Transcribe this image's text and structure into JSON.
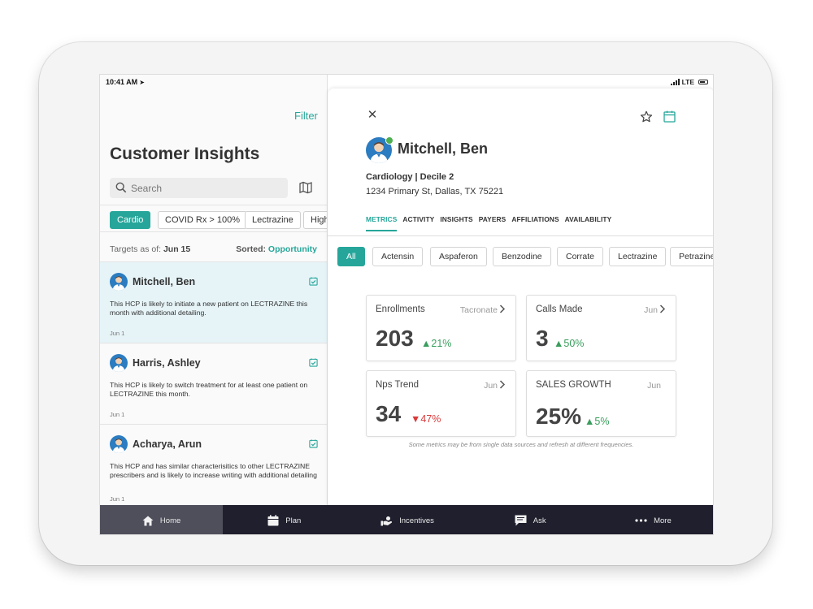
{
  "status": {
    "time": "10:41 AM",
    "network": "LTE"
  },
  "left": {
    "filter_label": "Filter",
    "title": "Customer Insights",
    "search_placeholder": "Search",
    "chips": [
      {
        "label": "Cardio",
        "active": true
      },
      {
        "label": "COVID Rx > 100%",
        "active": false
      },
      {
        "label": "Lectrazine",
        "active": false
      },
      {
        "label": "High",
        "active": false
      }
    ],
    "targets_prefix": "Targets as of:",
    "targets_date": "Jun 15",
    "sorted_prefix": "Sorted:",
    "sorted_value": "Opportunity",
    "hcps": [
      {
        "name": "Mitchell, Ben",
        "desc": "This HCP is likely to initiate a new patient on LECTRAZINE this month with additional detailing.",
        "date": "Jun 1",
        "selected": true
      },
      {
        "name": "Harris, Ashley",
        "desc": "This HCP is likely to switch treatment for at least one patient on LECTRAZINE this month.",
        "date": "Jun 1",
        "selected": false
      },
      {
        "name": "Acharya, Arun",
        "desc": "This HCP and has similar characterisitics to other LECTRAZINE prescribers and is likely to increase writing with additional detailing",
        "date": "Jun 1",
        "selected": false
      }
    ]
  },
  "detail": {
    "name": "Mitchell, Ben",
    "specialty": "Cardiology | Decile 2",
    "address": "1234 Primary St, Dallas, TX 75221",
    "tabs": [
      {
        "label": "METRICS",
        "active": true
      },
      {
        "label": "ACTIVITY",
        "active": false
      },
      {
        "label": "INSIGHTS",
        "active": false
      },
      {
        "label": "PAYERS",
        "active": false
      },
      {
        "label": "AFFILIATIONS",
        "active": false
      },
      {
        "label": "AVAILABILITY",
        "active": false
      }
    ],
    "products": [
      {
        "label": "All",
        "active": true
      },
      {
        "label": "Actensin",
        "active": false
      },
      {
        "label": "Aspaferon",
        "active": false
      },
      {
        "label": "Benzodine",
        "active": false
      },
      {
        "label": "Corrate",
        "active": false
      },
      {
        "label": "Lectrazine",
        "active": false
      },
      {
        "label": "Petrazine",
        "active": false
      }
    ],
    "metrics": [
      {
        "title": "Enrollments",
        "sub": "Tacronate",
        "value": "203",
        "change": "21%",
        "direction": "up",
        "chevron": true
      },
      {
        "title": "Calls Made",
        "sub": "Jun",
        "value": "3",
        "change": "50%",
        "direction": "up",
        "chevron": true
      },
      {
        "title": "Nps Trend",
        "sub": "Jun",
        "value": "34",
        "change": "47%",
        "direction": "down",
        "chevron": true
      },
      {
        "title": "SALES GROWTH",
        "sub": "Jun",
        "value": "25%",
        "change": "5%",
        "direction": "up",
        "chevron": false
      }
    ],
    "disclaimer": "Some metrics may be from single data sources and refresh at different frequencies."
  },
  "nav": [
    {
      "label": "Home",
      "icon": "home-icon",
      "active": true
    },
    {
      "label": "Plan",
      "icon": "calendar-icon",
      "active": false
    },
    {
      "label": "Incentives",
      "icon": "incentives-icon",
      "active": false
    },
    {
      "label": "Ask",
      "icon": "chat-icon",
      "active": false
    },
    {
      "label": "More",
      "icon": "more-icon",
      "active": false
    }
  ],
  "colors": {
    "accent": "#26a69a",
    "nav_bg": "#1f1f2e",
    "up": "#3a9d5d",
    "down": "#d93a3a"
  }
}
